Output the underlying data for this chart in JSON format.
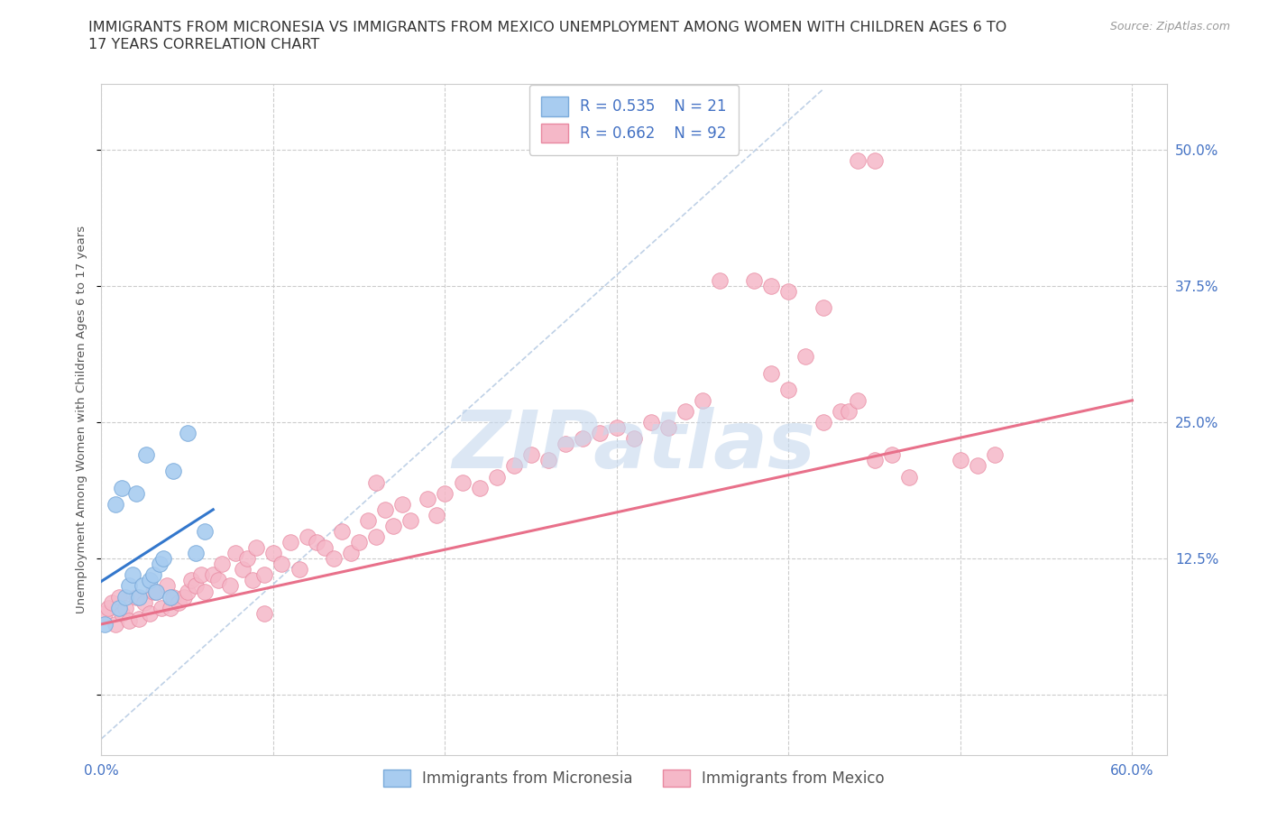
{
  "title_line1": "IMMIGRANTS FROM MICRONESIA VS IMMIGRANTS FROM MEXICO UNEMPLOYMENT AMONG WOMEN WITH CHILDREN AGES 6 TO",
  "title_line2": "17 YEARS CORRELATION CHART",
  "source": "Source: ZipAtlas.com",
  "ylabel": "Unemployment Among Women with Children Ages 6 to 17 years",
  "xlim": [
    0.0,
    0.62
  ],
  "ylim": [
    -0.055,
    0.56
  ],
  "xticks": [
    0.0,
    0.1,
    0.2,
    0.3,
    0.4,
    0.5,
    0.6
  ],
  "xticklabels": [
    "0.0%",
    "",
    "",
    "",
    "",
    "",
    "60.0%"
  ],
  "ytick_positions": [
    0.0,
    0.125,
    0.25,
    0.375,
    0.5
  ],
  "yticklabels": [
    "",
    "12.5%",
    "25.0%",
    "37.5%",
    "50.0%"
  ],
  "micronesia_color": "#a8ccf0",
  "micronesia_edge": "#7aaada",
  "mexico_color": "#f5b8c8",
  "mexico_edge": "#e888a0",
  "micronesia_R": 0.535,
  "micronesia_N": 21,
  "mexico_R": 0.662,
  "mexico_N": 92,
  "legend_label_micronesia": "Immigrants from Micronesia",
  "legend_label_mexico": "Immigrants from Mexico",
  "watermark": "ZIPatlas",
  "watermark_color": "#c5d8ee",
  "background_color": "#ffffff",
  "grid_color": "#cccccc",
  "title_fontsize": 11.5,
  "axis_label_fontsize": 9.5,
  "tick_fontsize": 11,
  "legend_fontsize": 12,
  "micronesia_line_color": "#3377cc",
  "mexico_line_color": "#e8708a",
  "ref_line_color": "#b8cce4",
  "tick_color": "#4472c4",
  "mic_x": [
    0.002,
    0.008,
    0.01,
    0.012,
    0.014,
    0.016,
    0.018,
    0.02,
    0.022,
    0.024,
    0.026,
    0.028,
    0.03,
    0.032,
    0.034,
    0.036,
    0.04,
    0.042,
    0.05,
    0.055,
    0.06
  ],
  "mic_y": [
    0.065,
    0.175,
    0.08,
    0.19,
    0.09,
    0.1,
    0.11,
    0.185,
    0.09,
    0.1,
    0.22,
    0.105,
    0.11,
    0.095,
    0.12,
    0.125,
    0.09,
    0.205,
    0.24,
    0.13,
    0.15
  ],
  "mex_x": [
    0.002,
    0.004,
    0.006,
    0.008,
    0.01,
    0.012,
    0.014,
    0.016,
    0.02,
    0.022,
    0.025,
    0.028,
    0.03,
    0.032,
    0.035,
    0.038,
    0.04,
    0.042,
    0.045,
    0.048,
    0.05,
    0.052,
    0.055,
    0.058,
    0.06,
    0.065,
    0.068,
    0.07,
    0.075,
    0.078,
    0.082,
    0.085,
    0.088,
    0.09,
    0.095,
    0.1,
    0.105,
    0.11,
    0.115,
    0.12,
    0.125,
    0.13,
    0.135,
    0.14,
    0.145,
    0.15,
    0.155,
    0.16,
    0.165,
    0.17,
    0.175,
    0.18,
    0.19,
    0.195,
    0.2,
    0.21,
    0.22,
    0.23,
    0.24,
    0.25,
    0.26,
    0.27,
    0.28,
    0.29,
    0.3,
    0.31,
    0.32,
    0.33,
    0.34,
    0.35,
    0.36,
    0.38,
    0.39,
    0.4,
    0.41,
    0.42,
    0.43,
    0.45,
    0.46,
    0.47,
    0.39,
    0.4,
    0.42,
    0.435,
    0.44,
    0.5,
    0.51,
    0.52,
    0.44,
    0.45,
    0.095,
    0.16
  ],
  "mex_y": [
    0.075,
    0.08,
    0.085,
    0.065,
    0.09,
    0.075,
    0.08,
    0.068,
    0.09,
    0.07,
    0.085,
    0.075,
    0.095,
    0.095,
    0.08,
    0.1,
    0.08,
    0.09,
    0.085,
    0.09,
    0.095,
    0.105,
    0.1,
    0.11,
    0.095,
    0.11,
    0.105,
    0.12,
    0.1,
    0.13,
    0.115,
    0.125,
    0.105,
    0.135,
    0.11,
    0.13,
    0.12,
    0.14,
    0.115,
    0.145,
    0.14,
    0.135,
    0.125,
    0.15,
    0.13,
    0.14,
    0.16,
    0.145,
    0.17,
    0.155,
    0.175,
    0.16,
    0.18,
    0.165,
    0.185,
    0.195,
    0.19,
    0.2,
    0.21,
    0.22,
    0.215,
    0.23,
    0.235,
    0.24,
    0.245,
    0.235,
    0.25,
    0.245,
    0.26,
    0.27,
    0.38,
    0.38,
    0.295,
    0.28,
    0.31,
    0.25,
    0.26,
    0.215,
    0.22,
    0.2,
    0.375,
    0.37,
    0.355,
    0.26,
    0.27,
    0.215,
    0.21,
    0.22,
    0.49,
    0.49,
    0.075,
    0.195
  ]
}
